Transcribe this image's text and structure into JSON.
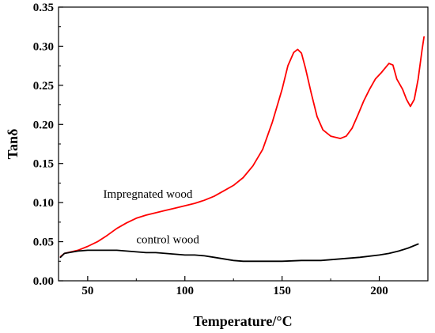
{
  "chart_data": {
    "type": "line",
    "xlabel": "Temperature/°C",
    "ylabel": "Tanδ",
    "xlim": [
      35,
      225
    ],
    "ylim": [
      0.0,
      0.35
    ],
    "x_ticks": [
      50,
      100,
      150,
      200
    ],
    "x_tick_labels": [
      "50",
      "100",
      "150",
      "200"
    ],
    "y_ticks": [
      0.0,
      0.05,
      0.1,
      0.15,
      0.2,
      0.25,
      0.3,
      0.35
    ],
    "y_tick_labels": [
      "0.00",
      "0.05",
      "0.10",
      "0.15",
      "0.20",
      "0.25",
      "0.30",
      "0.35"
    ],
    "grid": false,
    "annotations": [
      {
        "text": "Impregnated wood",
        "x": 58,
        "y": 0.106
      },
      {
        "text": "control wood",
        "x": 75,
        "y": 0.048
      }
    ],
    "series": [
      {
        "label": "Impregnated wood",
        "color": "#ff0000",
        "points": [
          [
            36,
            0.031
          ],
          [
            38,
            0.035
          ],
          [
            45,
            0.039
          ],
          [
            50,
            0.044
          ],
          [
            55,
            0.05
          ],
          [
            60,
            0.058
          ],
          [
            65,
            0.067
          ],
          [
            70,
            0.074
          ],
          [
            75,
            0.08
          ],
          [
            80,
            0.084
          ],
          [
            85,
            0.087
          ],
          [
            90,
            0.09
          ],
          [
            95,
            0.093
          ],
          [
            100,
            0.096
          ],
          [
            105,
            0.099
          ],
          [
            110,
            0.103
          ],
          [
            115,
            0.108
          ],
          [
            120,
            0.115
          ],
          [
            125,
            0.122
          ],
          [
            130,
            0.132
          ],
          [
            135,
            0.147
          ],
          [
            140,
            0.168
          ],
          [
            145,
            0.203
          ],
          [
            150,
            0.245
          ],
          [
            153,
            0.275
          ],
          [
            156,
            0.292
          ],
          [
            158,
            0.296
          ],
          [
            160,
            0.291
          ],
          [
            162,
            0.272
          ],
          [
            165,
            0.24
          ],
          [
            168,
            0.21
          ],
          [
            171,
            0.193
          ],
          [
            175,
            0.185
          ],
          [
            180,
            0.182
          ],
          [
            183,
            0.185
          ],
          [
            186,
            0.195
          ],
          [
            189,
            0.212
          ],
          [
            192,
            0.23
          ],
          [
            195,
            0.245
          ],
          [
            198,
            0.258
          ],
          [
            201,
            0.266
          ],
          [
            203,
            0.272
          ],
          [
            205,
            0.278
          ],
          [
            207,
            0.276
          ],
          [
            209,
            0.258
          ],
          [
            212,
            0.245
          ],
          [
            214,
            0.232
          ],
          [
            216,
            0.223
          ],
          [
            218,
            0.232
          ],
          [
            220,
            0.258
          ],
          [
            222,
            0.295
          ],
          [
            223,
            0.312
          ]
        ]
      },
      {
        "label": "control wood",
        "color": "#000000",
        "points": [
          [
            36,
            0.03
          ],
          [
            38,
            0.035
          ],
          [
            45,
            0.038
          ],
          [
            50,
            0.039
          ],
          [
            55,
            0.039
          ],
          [
            60,
            0.039
          ],
          [
            65,
            0.039
          ],
          [
            70,
            0.038
          ],
          [
            75,
            0.037
          ],
          [
            80,
            0.036
          ],
          [
            85,
            0.036
          ],
          [
            90,
            0.035
          ],
          [
            95,
            0.034
          ],
          [
            100,
            0.033
          ],
          [
            105,
            0.033
          ],
          [
            110,
            0.032
          ],
          [
            115,
            0.03
          ],
          [
            120,
            0.028
          ],
          [
            125,
            0.026
          ],
          [
            130,
            0.025
          ],
          [
            140,
            0.025
          ],
          [
            150,
            0.025
          ],
          [
            160,
            0.026
          ],
          [
            170,
            0.026
          ],
          [
            180,
            0.028
          ],
          [
            190,
            0.03
          ],
          [
            200,
            0.033
          ],
          [
            205,
            0.035
          ],
          [
            210,
            0.038
          ],
          [
            215,
            0.042
          ],
          [
            220,
            0.047
          ]
        ]
      }
    ]
  }
}
